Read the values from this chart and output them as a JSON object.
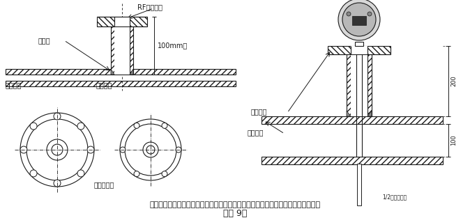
{
  "bg_color": "#ffffff",
  "line_color": "#1a1a1a",
  "title_text": "插入式流量计短管制作、安装示意图，根据流量计算采用不同的法兰及短管公称直径",
  "subtitle_text": "（图 9）",
  "label_RF": "RF配套法兰",
  "label_weldpoint": "焊接点",
  "label_100mm": "100mm高",
  "label_gongyi": "工艺管道",
  "label_weldpipe": "焊接短管",
  "label_centerline": "管道中心线",
  "label_peitao": "配套短管",
  "label_pipeouter": "管道外壁",
  "label_half": "1/2测量管外径",
  "label_200": "200",
  "label_100": "100",
  "fig_width": 6.74,
  "fig_height": 3.13,
  "dpi": 100
}
